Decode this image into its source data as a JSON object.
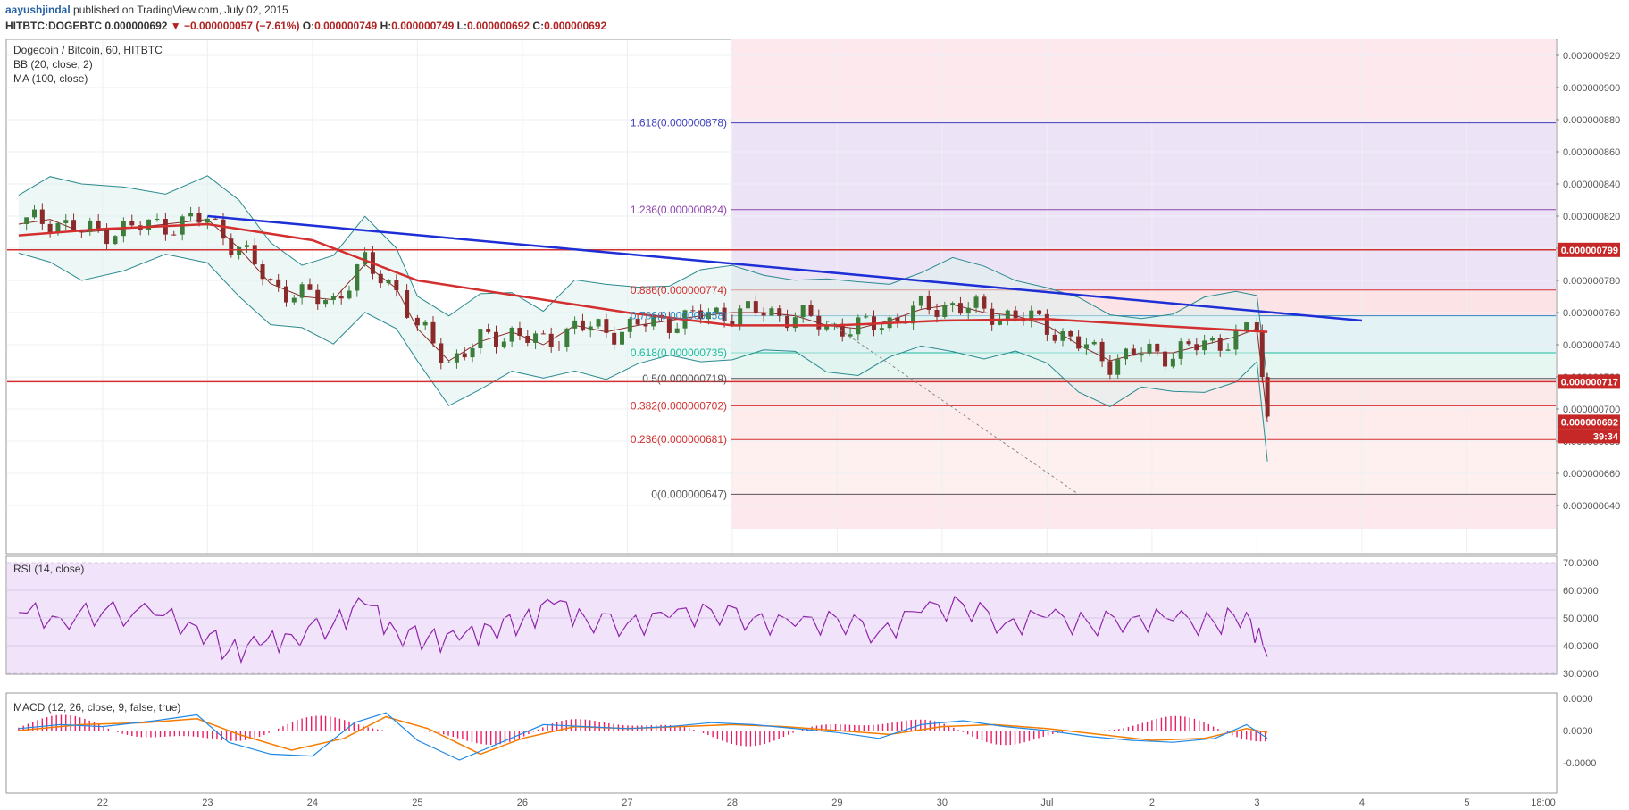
{
  "header": {
    "author": "aayushjindal",
    "published": "published on TradingView.com, July 02, 2015",
    "symbol": "HITBTC:DOGEBTC",
    "last": "0.000000692",
    "change": "−0.000000057 (−7.61%)",
    "o_label": "O:",
    "o_value": "0.000000749",
    "h_label": "H:",
    "h_value": "0.000000749",
    "l_label": "L:",
    "l_value": "0.000000692",
    "c_label": "C:",
    "c_value": "0.000000692"
  },
  "panes": {
    "main": {
      "title": "Dogecoin / Bitcoin, 60, HITBTC",
      "indicators": [
        "BB (20, close, 2)",
        "MA (100, close)"
      ],
      "price_ticks": [
        "0.000000920",
        "0.000000900",
        "0.000000880",
        "0.000000860",
        "0.000000840",
        "0.000000820",
        "0.000000800",
        "0.000000780",
        "0.000000760",
        "0.000000740",
        "0.000000720",
        "0.000000700",
        "0.000000680",
        "0.000000660",
        "0.000000640"
      ],
      "price_markers": [
        {
          "value": "0.000000799",
          "color": "#c62828"
        },
        {
          "value": "0.000000717",
          "color": "#c62828"
        },
        {
          "value": "0.000000692",
          "color": "#c62828"
        },
        {
          "value": "39:34",
          "color": "#c62828"
        }
      ],
      "fib_levels": [
        {
          "label": "1.618(0.000000878)",
          "color": "#3f3fbf"
        },
        {
          "label": "1.236(0.000000824)",
          "color": "#8e44ad"
        },
        {
          "label": "0.886(0.000000774)",
          "color": "#d32f2f"
        },
        {
          "label": "0.786(0.000000758)",
          "color": "#2e86c1"
        },
        {
          "label": "0.618(0.000000735)",
          "color": "#1abc9c"
        },
        {
          "label": "0.5(0.000000719)",
          "color": "#555555"
        },
        {
          "label": "0.382(0.000000702)",
          "color": "#d32f2f"
        },
        {
          "label": "0.236(0.000000681)",
          "color": "#d32f2f"
        },
        {
          "label": "0(0.000000647)",
          "color": "#555555"
        }
      ]
    },
    "rsi": {
      "title": "RSI (14, close)",
      "ticks": [
        "70.0000",
        "60.0000",
        "50.0000",
        "40.0000",
        "30.0000"
      ]
    },
    "macd": {
      "title": "MACD (12, 26, close, 9, false, true)",
      "ticks": [
        "0.0000",
        "0.0000",
        "-0.0000"
      ]
    }
  },
  "x_axis": [
    "22",
    "23",
    "24",
    "25",
    "26",
    "27",
    "28",
    "29",
    "30",
    "Jul",
    "2",
    "3",
    "4",
    "5",
    "18:00"
  ],
  "colors": {
    "candle_up": "#3d7d3b",
    "candle_down": "#8b2a2a",
    "ma": "#d32f2f",
    "bb": "#2a8a8f",
    "trend": "#1e2fd6",
    "rsi": "#8e24aa",
    "macd": "#1e88e5",
    "signal": "#f57c00",
    "hist": "#e91e63"
  },
  "chart_data": {
    "type": "candlestick",
    "symbol": "HITBTC:DOGEBTC",
    "interval": "60",
    "x_labels": [
      "22",
      "23",
      "24",
      "25",
      "26",
      "27",
      "28",
      "29",
      "30",
      "Jul",
      "2",
      "3",
      "4",
      "5"
    ],
    "ylim": [
      6.3e-07,
      9.3e-07
    ],
    "close_path": [
      [
        21.2,
        8.15e-07
      ],
      [
        21.5,
        8.18e-07
      ],
      [
        21.8,
        8.1e-07
      ],
      [
        22.2,
        8.12e-07
      ],
      [
        22.6,
        8.15e-07
      ],
      [
        23.0,
        8.18e-07
      ],
      [
        23.3,
        8e-07
      ],
      [
        23.6,
        7.78e-07
      ],
      [
        23.9,
        7.7e-07
      ],
      [
        24.2,
        7.68e-07
      ],
      [
        24.5,
        7.9e-07
      ],
      [
        24.8,
        7.75e-07
      ],
      [
        25.0,
        7.5e-07
      ],
      [
        25.3,
        7.3e-07
      ],
      [
        25.6,
        7.42e-07
      ],
      [
        25.9,
        7.48e-07
      ],
      [
        26.2,
        7.4e-07
      ],
      [
        26.5,
        7.52e-07
      ],
      [
        26.8,
        7.48e-07
      ],
      [
        27.1,
        7.52e-07
      ],
      [
        27.4,
        7.55e-07
      ],
      [
        27.7,
        7.58e-07
      ],
      [
        28.0,
        7.6e-07
      ],
      [
        28.3,
        7.6e-07
      ],
      [
        28.6,
        7.58e-07
      ],
      [
        28.9,
        7.52e-07
      ],
      [
        29.2,
        7.5e-07
      ],
      [
        29.5,
        7.55e-07
      ],
      [
        29.8,
        7.62e-07
      ],
      [
        30.1,
        7.65e-07
      ],
      [
        30.4,
        7.6e-07
      ],
      [
        30.7,
        7.58e-07
      ],
      [
        31.0,
        7.52e-07
      ],
      [
        31.3,
        7.4e-07
      ],
      [
        31.6,
        7.3e-07
      ],
      [
        31.9,
        7.35e-07
      ],
      [
        32.2,
        7.35e-07
      ],
      [
        32.5,
        7.4e-07
      ],
      [
        32.8,
        7.45e-07
      ],
      [
        33.0,
        7.5e-07
      ],
      [
        33.1,
        6.92e-07
      ]
    ],
    "ma100_path": [
      [
        21.2,
        8.08e-07
      ],
      [
        22.0,
        8.12e-07
      ],
      [
        23.0,
        8.15e-07
      ],
      [
        24.0,
        8.05e-07
      ],
      [
        25.0,
        7.8e-07
      ],
      [
        26.0,
        7.7e-07
      ],
      [
        27.0,
        7.6e-07
      ],
      [
        28.0,
        7.52e-07
      ],
      [
        29.0,
        7.52e-07
      ],
      [
        30.0,
        7.55e-07
      ],
      [
        31.0,
        7.56e-07
      ],
      [
        32.0,
        7.52e-07
      ],
      [
        33.1,
        7.48e-07
      ]
    ],
    "trendline": [
      [
        23.0,
        8.2e-07
      ],
      [
        34.0,
        7.55e-07
      ]
    ],
    "fibonacci": [
      {
        "ratio": 1.618,
        "price": 8.78e-07
      },
      {
        "ratio": 1.236,
        "price": 8.24e-07
      },
      {
        "ratio": 0.886,
        "price": 7.74e-07
      },
      {
        "ratio": 0.786,
        "price": 7.58e-07
      },
      {
        "ratio": 0.618,
        "price": 7.35e-07
      },
      {
        "ratio": 0.5,
        "price": 7.19e-07
      },
      {
        "ratio": 0.382,
        "price": 7.02e-07
      },
      {
        "ratio": 0.236,
        "price": 6.81e-07
      },
      {
        "ratio": 0,
        "price": 6.47e-07
      }
    ],
    "horizontal_levels": [
      7.99e-07,
      7.17e-07
    ],
    "last_price": 6.92e-07,
    "rsi_ylim": [
      30,
      70
    ],
    "rsi_path": [
      [
        21.2,
        52
      ],
      [
        21.6,
        50
      ],
      [
        22.0,
        52
      ],
      [
        22.5,
        51
      ],
      [
        22.9,
        47
      ],
      [
        23.2,
        38
      ],
      [
        23.5,
        40
      ],
      [
        23.8,
        44
      ],
      [
        24.2,
        48
      ],
      [
        24.5,
        55
      ],
      [
        24.8,
        45
      ],
      [
        25.1,
        43
      ],
      [
        25.4,
        42
      ],
      [
        25.7,
        47
      ],
      [
        26.0,
        49
      ],
      [
        26.3,
        55
      ],
      [
        26.6,
        50
      ],
      [
        27.0,
        48
      ],
      [
        27.4,
        50
      ],
      [
        27.8,
        53
      ],
      [
        28.2,
        50
      ],
      [
        28.6,
        47
      ],
      [
        29.0,
        50
      ],
      [
        29.4,
        45
      ],
      [
        29.8,
        52
      ],
      [
        30.2,
        55
      ],
      [
        30.6,
        48
      ],
      [
        31.0,
        50
      ],
      [
        31.4,
        48
      ],
      [
        31.8,
        50
      ],
      [
        32.2,
        49
      ],
      [
        32.6,
        48
      ],
      [
        32.9,
        52
      ],
      [
        33.1,
        36
      ]
    ],
    "macd_path": [
      [
        21.2,
        0.1
      ],
      [
        21.6,
        0.3
      ],
      [
        22.0,
        0.2
      ],
      [
        22.5,
        0.5
      ],
      [
        22.9,
        0.8
      ],
      [
        23.2,
        -0.6
      ],
      [
        23.6,
        -1.2
      ],
      [
        24.0,
        -1.3
      ],
      [
        24.4,
        0.4
      ],
      [
        24.7,
        0.9
      ],
      [
        25.0,
        -0.5
      ],
      [
        25.4,
        -1.5
      ],
      [
        25.8,
        -0.6
      ],
      [
        26.2,
        0.3
      ],
      [
        26.6,
        0.2
      ],
      [
        27.0,
        0.1
      ],
      [
        27.4,
        0.2
      ],
      [
        27.8,
        0.4
      ],
      [
        28.2,
        0.3
      ],
      [
        28.6,
        0.1
      ],
      [
        29.0,
        -0.1
      ],
      [
        29.4,
        -0.4
      ],
      [
        29.8,
        0.3
      ],
      [
        30.2,
        0.5
      ],
      [
        30.6,
        0.2
      ],
      [
        31.0,
        0.0
      ],
      [
        31.4,
        -0.3
      ],
      [
        31.8,
        -0.5
      ],
      [
        32.2,
        -0.6
      ],
      [
        32.6,
        -0.4
      ],
      [
        32.9,
        0.3
      ],
      [
        33.1,
        -0.4
      ]
    ],
    "signal_path": [
      [
        21.2,
        0.0
      ],
      [
        21.8,
        0.3
      ],
      [
        22.4,
        0.4
      ],
      [
        22.9,
        0.6
      ],
      [
        23.3,
        -0.2
      ],
      [
        23.8,
        -1.0
      ],
      [
        24.3,
        -0.4
      ],
      [
        24.7,
        0.7
      ],
      [
        25.1,
        0.1
      ],
      [
        25.6,
        -1.2
      ],
      [
        26.0,
        -0.4
      ],
      [
        26.5,
        0.2
      ],
      [
        27.0,
        0.1
      ],
      [
        27.5,
        0.2
      ],
      [
        28.0,
        0.3
      ],
      [
        28.5,
        0.2
      ],
      [
        29.0,
        0.0
      ],
      [
        29.5,
        -0.2
      ],
      [
        30.0,
        0.2
      ],
      [
        30.5,
        0.3
      ],
      [
        31.0,
        0.1
      ],
      [
        31.5,
        -0.2
      ],
      [
        32.0,
        -0.5
      ],
      [
        32.5,
        -0.4
      ],
      [
        32.9,
        0.1
      ],
      [
        33.1,
        -0.1
      ]
    ]
  }
}
